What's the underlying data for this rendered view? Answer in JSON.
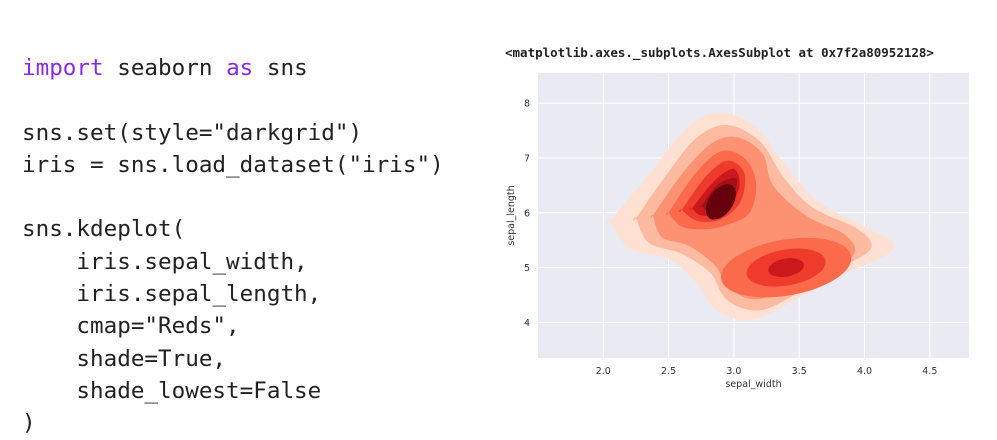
{
  "code": {
    "lines": [
      [
        {
          "t": "import",
          "kw": true
        },
        {
          "t": " seaborn "
        },
        {
          "t": "as",
          "kw": true
        },
        {
          "t": " sns"
        }
      ],
      [],
      [
        {
          "t": "sns.set(style=\"darkgrid\")"
        }
      ],
      [
        {
          "t": "iris = sns.load_dataset(\"iris\")"
        }
      ],
      [],
      [
        {
          "t": "sns.kdeplot("
        }
      ],
      [
        {
          "t": "    iris.sepal_width,"
        }
      ],
      [
        {
          "t": "    iris.sepal_length,"
        }
      ],
      [
        {
          "t": "    cmap=\"Reds\","
        }
      ],
      [
        {
          "t": "    shade=True,"
        }
      ],
      [
        {
          "t": "    shade_lowest=False"
        }
      ],
      [
        {
          "t": ")"
        }
      ]
    ]
  },
  "output_repr": "<matplotlib.axes._subplots.AxesSubplot at 0x7f2a80952128>",
  "colors": {
    "keyword": "#8a2be2",
    "plot_background": "#eaeaf2",
    "grid": "#ffffff"
  },
  "chart_data": {
    "type": "kde-contour",
    "xlabel": "sepal_width",
    "ylabel": "sepal_length",
    "xlim": [
      1.5,
      4.8
    ],
    "ylim": [
      3.35,
      8.55
    ],
    "xticks": [
      "2.0",
      "2.5",
      "3.0",
      "3.5",
      "4.0",
      "4.5"
    ],
    "yticks": [
      "4",
      "5",
      "6",
      "7",
      "8"
    ],
    "grid": true,
    "cmap": "Reds",
    "shade": true,
    "shade_lowest": false,
    "density_modes": [
      {
        "x": 2.9,
        "y": 6.2
      },
      {
        "x": 3.4,
        "y": 5.0
      }
    ]
  }
}
